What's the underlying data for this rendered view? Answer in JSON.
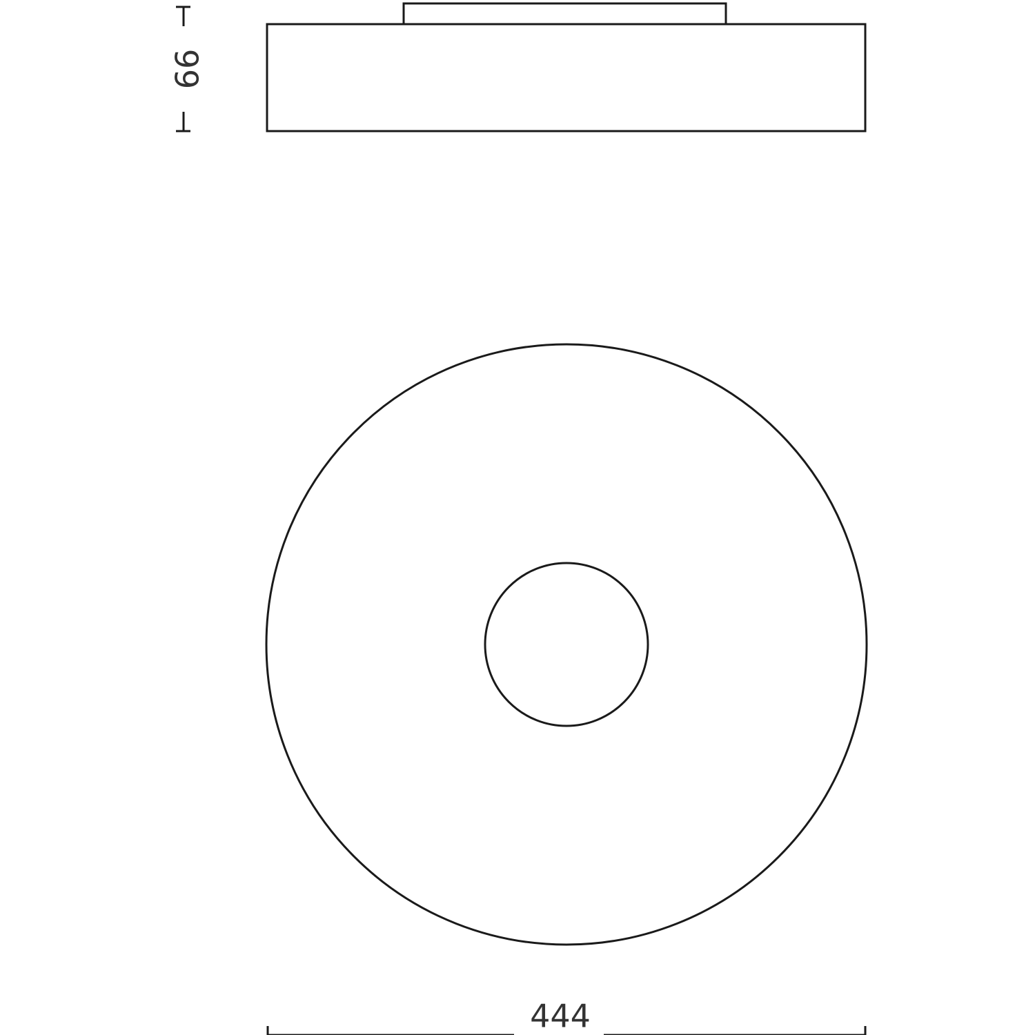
{
  "dimensions": {
    "height_label": "99",
    "width_label": "444"
  },
  "colors": {
    "stroke": "#1a1a1a",
    "text": "#333333",
    "background": "#ffffff"
  }
}
